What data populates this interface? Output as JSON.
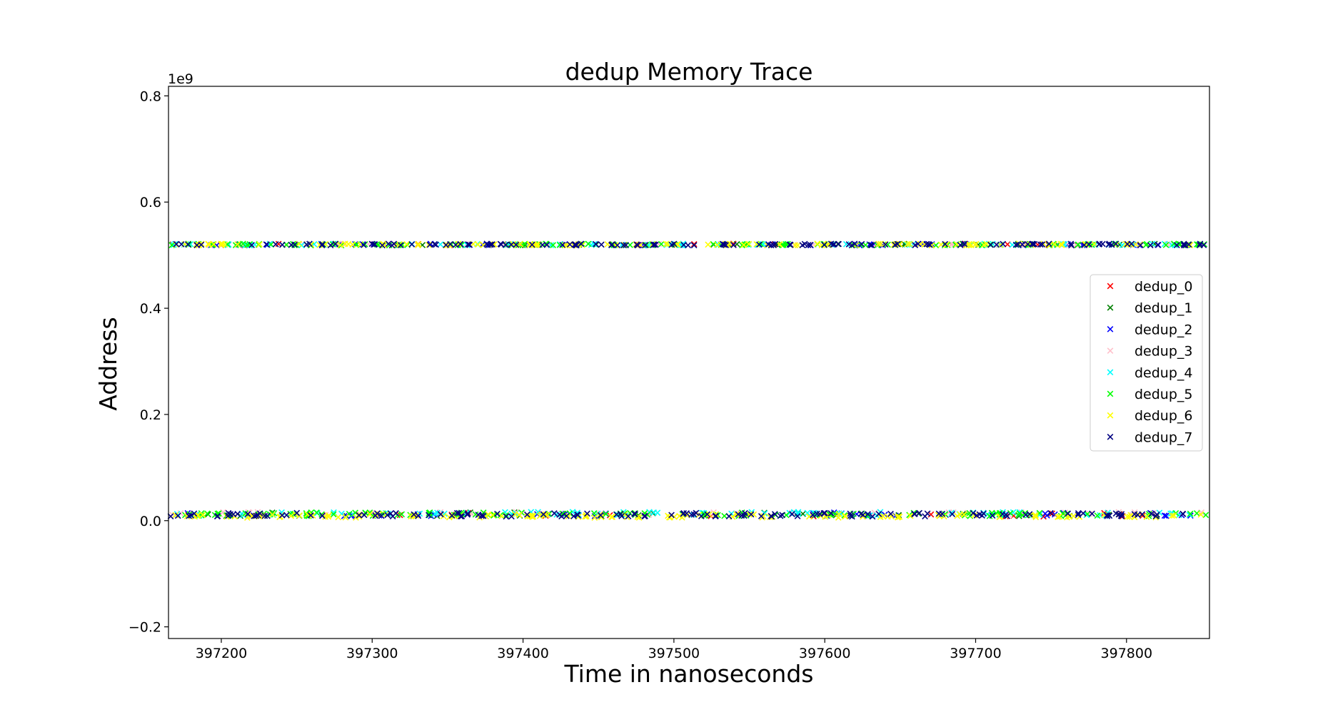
{
  "chart_data": {
    "type": "scatter",
    "title": "dedup Memory Trace",
    "xlabel": "Time in nanoseconds",
    "ylabel": "Address",
    "y_offset_label": "1e9",
    "xlim": [
      397165,
      397855
    ],
    "ylim": [
      -0.222,
      0.818
    ],
    "x_ticks": [
      397200,
      397300,
      397400,
      397500,
      397600,
      397700,
      397800
    ],
    "x_tick_labels": [
      "397200",
      "397300",
      "397400",
      "397500",
      "397600",
      "397700",
      "397800"
    ],
    "y_ticks": [
      -0.2,
      0.0,
      0.2,
      0.4,
      0.6,
      0.8
    ],
    "y_tick_labels": [
      "−0.2",
      "0.0",
      "0.2",
      "0.4",
      "0.6",
      "0.8"
    ],
    "grid": false,
    "legend_position": "center-right",
    "marker": "x",
    "series": [
      {
        "name": "dedup_0",
        "color": "#ff0000",
        "upper_band": 0.52,
        "lower_band": 0.011,
        "x_start": 397166,
        "x_end": 397854,
        "count": 20
      },
      {
        "name": "dedup_1",
        "color": "#008000",
        "upper_band": 0.52,
        "lower_band": 0.012,
        "x_start": 397166,
        "x_end": 397854,
        "count": 30
      },
      {
        "name": "dedup_2",
        "color": "#0000ff",
        "upper_band": 0.52,
        "lower_band": 0.012,
        "x_start": 397166,
        "x_end": 397854,
        "count": 40
      },
      {
        "name": "dedup_3",
        "color": "#ffc0cb",
        "upper_band": 0.52,
        "lower_band": 0.013,
        "x_start": 397166,
        "x_end": 397854,
        "count": 40
      },
      {
        "name": "dedup_4",
        "color": "#00ffff",
        "upper_band": 0.52,
        "lower_band": 0.013,
        "x_start": 397166,
        "x_end": 397854,
        "count": 80
      },
      {
        "name": "dedup_5",
        "color": "#00ff00",
        "upper_band": 0.52,
        "lower_band": 0.012,
        "x_start": 397166,
        "x_end": 397854,
        "count": 120
      },
      {
        "name": "dedup_6",
        "color": "#ffff00",
        "upper_band": 0.52,
        "lower_band": 0.009,
        "x_start": 397166,
        "x_end": 397854,
        "count": 140
      },
      {
        "name": "dedup_7",
        "color": "#000080",
        "upper_band": 0.52,
        "lower_band": 0.011,
        "x_start": 397166,
        "x_end": 397854,
        "count": 150
      }
    ]
  }
}
